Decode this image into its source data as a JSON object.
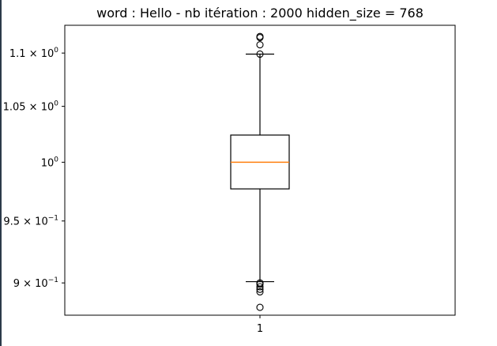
{
  "title": "word : Hello - nb itération : 2000 hidden_size = 768",
  "chart_data": {
    "type": "boxplot",
    "title": "word : Hello - nb itération : 2000 hidden_size = 768",
    "xlabel": "",
    "ylabel": "",
    "yscale": "log",
    "ylim": [
      0.875,
      1.127
    ],
    "grid": false,
    "x_tick_labels": [
      "1"
    ],
    "y_ticks": [
      {
        "value": 1.1,
        "mantissa": "1.1",
        "times": "×",
        "base": "10",
        "exponent": "0"
      },
      {
        "value": 1.05,
        "mantissa": "1.05",
        "times": "×",
        "base": "10",
        "exponent": "0"
      },
      {
        "value": 1.0,
        "mantissa": "",
        "times": "",
        "base": "10",
        "exponent": "0"
      },
      {
        "value": 0.95,
        "mantissa": "9.5",
        "times": "×",
        "base": "10",
        "exponent": "−1"
      },
      {
        "value": 0.9,
        "mantissa": "9",
        "times": "×",
        "base": "10",
        "exponent": "−1"
      }
    ],
    "boxes": [
      {
        "category": "1",
        "whisker_low": 0.901,
        "q1": 0.977,
        "median": 1.0,
        "q3": 1.024,
        "whisker_high": 1.099,
        "outliers": [
          1.116,
          1.115,
          1.108,
          1.099,
          0.9,
          0.899,
          0.897,
          0.895,
          0.893,
          0.881
        ]
      }
    ],
    "colors": {
      "box": "#000000",
      "median": "#ff7f0e",
      "outlier": "#000000"
    }
  }
}
